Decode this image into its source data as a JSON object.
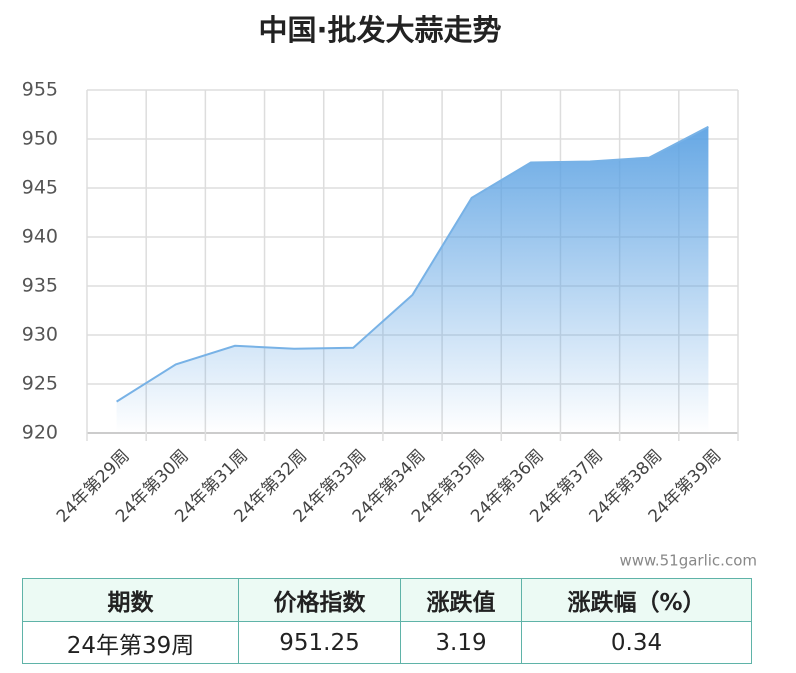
{
  "chart_data": {
    "type": "area",
    "title": "中国·批发大蒜走势",
    "categories": [
      "24年第29周",
      "24年第30周",
      "24年第31周",
      "24年第32周",
      "24年第33周",
      "24年第34周",
      "24年第35周",
      "24年第36周",
      "24年第37周",
      "24年第38周",
      "24年第39周"
    ],
    "values": [
      923.2,
      927.0,
      928.9,
      928.6,
      928.7,
      934.1,
      944.0,
      947.6,
      947.7,
      948.1,
      951.25
    ],
    "color": "#78b2e6",
    "ylim": [
      920,
      955
    ],
    "yticks": [
      920,
      925,
      930,
      935,
      940,
      945,
      950,
      955
    ],
    "grid": true
  },
  "watermark": "www.51garlic.com",
  "table": {
    "header": [
      "期数",
      "价格指数",
      "涨跌值",
      "涨跌幅（%）"
    ],
    "rows": [
      [
        "24年第39周",
        951.25,
        3.19,
        0.34
      ]
    ]
  }
}
